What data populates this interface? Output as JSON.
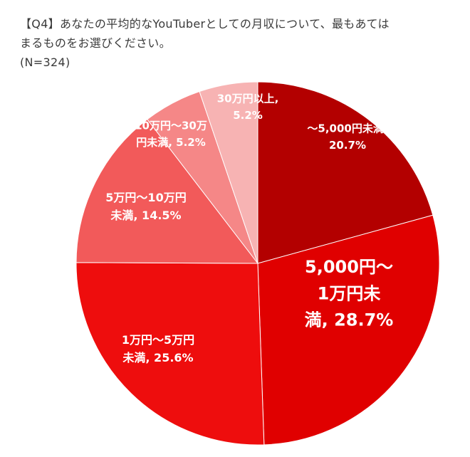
{
  "header": {
    "question_line1": "【Q4】あなたの平均的なYouTuberとしての月収について、最もあてはまるものをお選びください。",
    "question_line1a": "【Q4】あなたの平均的なYouTuberとしての月収について、最もあては",
    "question_line1b": "まるものをお選びください。",
    "sample_size": "(N=324)"
  },
  "chart_data": {
    "type": "pie",
    "title": "",
    "slices": [
      {
        "lines": [
          "～5,000円未満,",
          "20.7%"
        ],
        "category": "～5,000円未満",
        "value": 20.7,
        "color": "#b30000"
      },
      {
        "lines": [
          "5,000円～",
          "1万円未",
          "満, 28.7%"
        ],
        "category": "5,000円～1万円未満",
        "value": 28.7,
        "color": "#e00000"
      },
      {
        "lines": [
          "1万円～5万円",
          "未満, 25.6%"
        ],
        "category": "1万円～5万円未満",
        "value": 25.6,
        "color": "#ee0d0d"
      },
      {
        "lines": [
          "5万円～10万円",
          "未満, 14.5%"
        ],
        "category": "5万円～10万円未満",
        "value": 14.5,
        "color": "#f25a5a"
      },
      {
        "lines": [
          "10万円～30万",
          "円未満, 5.2%"
        ],
        "category": "10万円～30万円未満",
        "value": 5.2,
        "color": "#f58787"
      },
      {
        "lines": [
          "30万円以上,",
          "5.2%"
        ],
        "category": "30万円以上",
        "value": 5.2,
        "color": "#f7b3b3"
      }
    ]
  }
}
